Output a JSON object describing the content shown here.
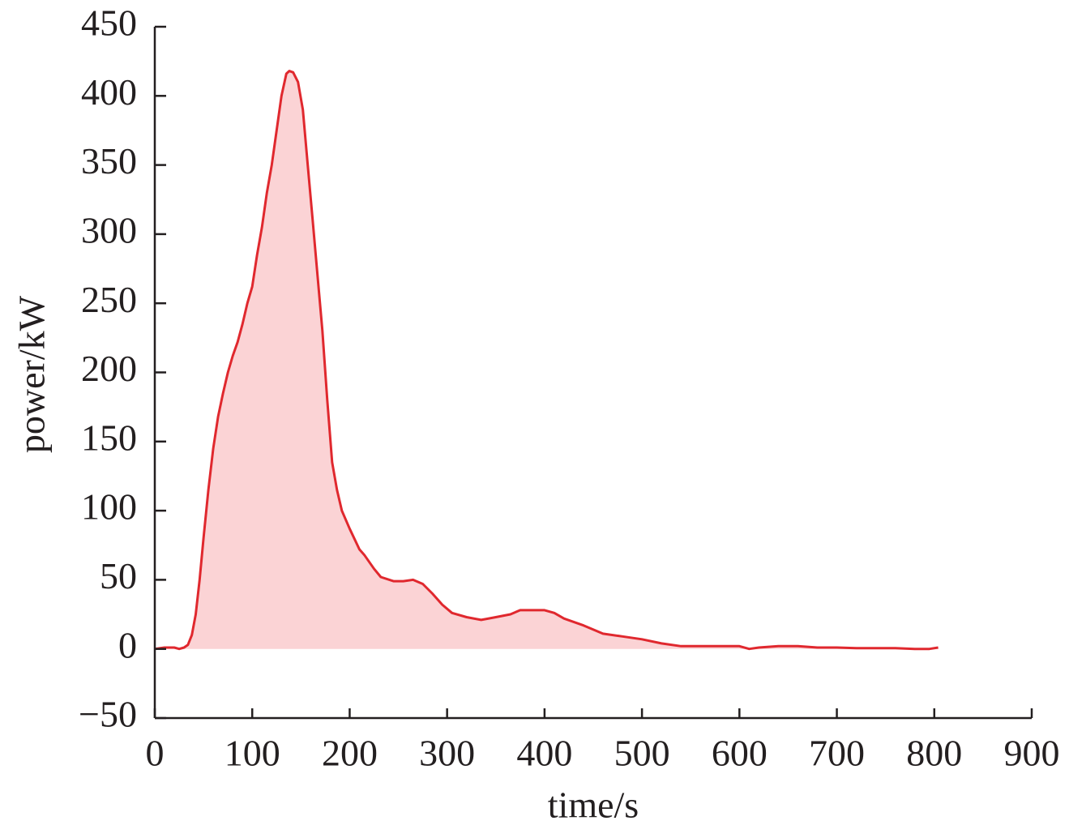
{
  "chart_data": {
    "type": "area",
    "xlabel": "time/s",
    "ylabel": "power/kW",
    "x": [
      0,
      10,
      20,
      25,
      30,
      34,
      38,
      42,
      46,
      50,
      55,
      60,
      65,
      70,
      75,
      80,
      85,
      90,
      95,
      100,
      105,
      110,
      115,
      120,
      125,
      130,
      135,
      138,
      142,
      147,
      152,
      157,
      162,
      167,
      172,
      177,
      182,
      187,
      192,
      200,
      210,
      215,
      225,
      232,
      245,
      255,
      265,
      275,
      285,
      295,
      305,
      320,
      335,
      350,
      365,
      375,
      390,
      400,
      410,
      420,
      440,
      460,
      480,
      500,
      520,
      540,
      560,
      580,
      600,
      610,
      620,
      640,
      660,
      680,
      700,
      720,
      740,
      760,
      780,
      795,
      804
    ],
    "values": [
      0,
      1,
      1,
      0,
      1,
      3,
      10,
      25,
      50,
      80,
      115,
      145,
      168,
      185,
      200,
      212,
      222,
      235,
      250,
      262,
      285,
      305,
      330,
      350,
      375,
      400,
      416,
      418,
      417,
      410,
      390,
      350,
      310,
      270,
      230,
      180,
      135,
      115,
      100,
      87,
      72,
      68,
      58,
      52,
      49,
      49,
      50,
      47,
      40,
      32,
      26,
      23,
      21,
      23,
      25,
      28,
      28,
      28,
      26,
      22,
      17,
      11,
      9,
      7,
      4,
      2,
      2,
      2,
      2,
      0,
      1,
      2,
      2,
      1,
      1,
      0.5,
      0.5,
      0.5,
      0,
      0,
      1
    ],
    "color": "#e0282e",
    "fill_color": "#fbd3d5",
    "xlim": [
      0,
      900
    ],
    "ylim": [
      -50,
      450
    ],
    "xticks": [
      0,
      100,
      200,
      300,
      400,
      500,
      600,
      700,
      800,
      900
    ],
    "yticks": [
      {
        "value": -50,
        "label": "−50"
      },
      0,
      50,
      100,
      150,
      200,
      250,
      300,
      350,
      400,
      450
    ]
  }
}
